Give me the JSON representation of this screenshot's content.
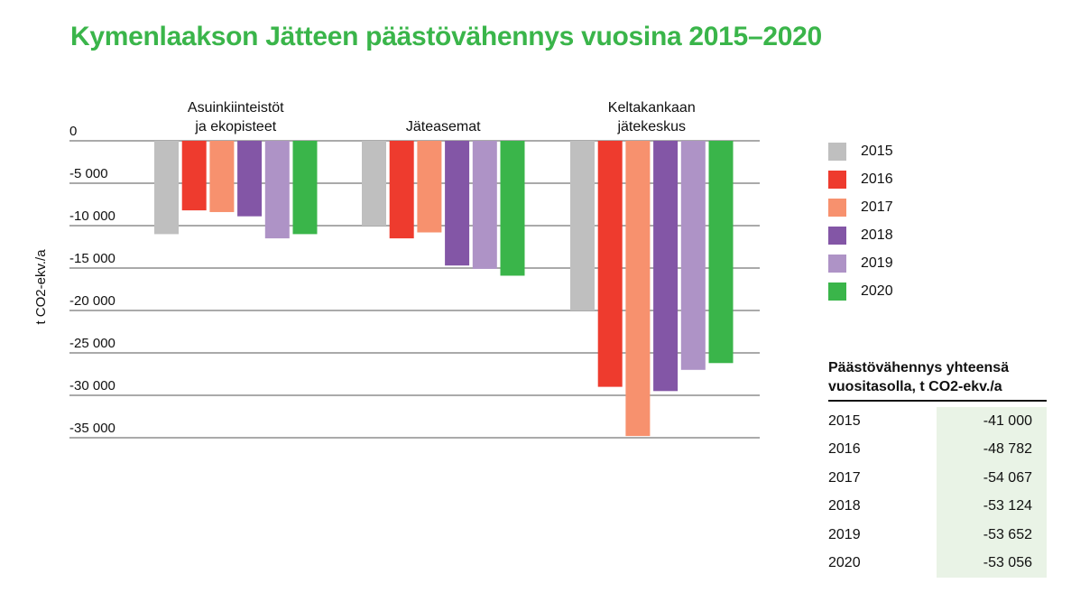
{
  "title": "Kymenlaakson Jätteen päästövähennys vuosina 2015–2020",
  "colors": {
    "title": "#3ab54a",
    "series": [
      "#bfbfbf",
      "#ee3b2e",
      "#f7916e",
      "#8356a6",
      "#ae93c6",
      "#3ab54a"
    ]
  },
  "chart_data": {
    "type": "bar",
    "title": "Kymenlaakson Jätteen päästövähennys vuosina 2015–2020",
    "ylabel": "t CO2-ekv./a",
    "ylim": [
      -35000,
      0
    ],
    "yticks": [
      0,
      -5000,
      -10000,
      -15000,
      -20000,
      -25000,
      -30000,
      -35000
    ],
    "ytick_labels": [
      "0",
      "-5 000",
      "-10 000",
      "-15 000",
      "-20 000",
      "-25 000",
      "-30 000",
      "-35 000"
    ],
    "categories": [
      [
        "Asuinkiinteistöt",
        "ja ekopisteet"
      ],
      [
        "Jäteasemat"
      ],
      [
        "Keltakankaan",
        "jätekeskus"
      ]
    ],
    "series": [
      {
        "name": "2015",
        "values": [
          -11000,
          -10000,
          -20000
        ]
      },
      {
        "name": "2016",
        "values": [
          -8200,
          -11500,
          -29000
        ]
      },
      {
        "name": "2017",
        "values": [
          -8400,
          -10800,
          -34800
        ]
      },
      {
        "name": "2018",
        "values": [
          -8900,
          -14700,
          -29500
        ]
      },
      {
        "name": "2019",
        "values": [
          -11500,
          -15100,
          -27000
        ]
      },
      {
        "name": "2020",
        "values": [
          -11000,
          -15900,
          -26200
        ]
      }
    ],
    "grid": true,
    "legend": "right"
  },
  "legend": [
    {
      "label": "2015"
    },
    {
      "label": "2016"
    },
    {
      "label": "2017"
    },
    {
      "label": "2018"
    },
    {
      "label": "2019"
    },
    {
      "label": "2020"
    }
  ],
  "summary": {
    "title_line1": "Päästövähennys yhteensä",
    "title_line2": "vuositasolla, t CO2-ekv./a",
    "rows": [
      {
        "year": "2015",
        "value": "-41 000"
      },
      {
        "year": "2016",
        "value": "-48 782"
      },
      {
        "year": "2017",
        "value": "-54 067"
      },
      {
        "year": "2018",
        "value": "-53 124"
      },
      {
        "year": "2019",
        "value": "-53 652"
      },
      {
        "year": "2020",
        "value": "-53 056"
      }
    ]
  }
}
